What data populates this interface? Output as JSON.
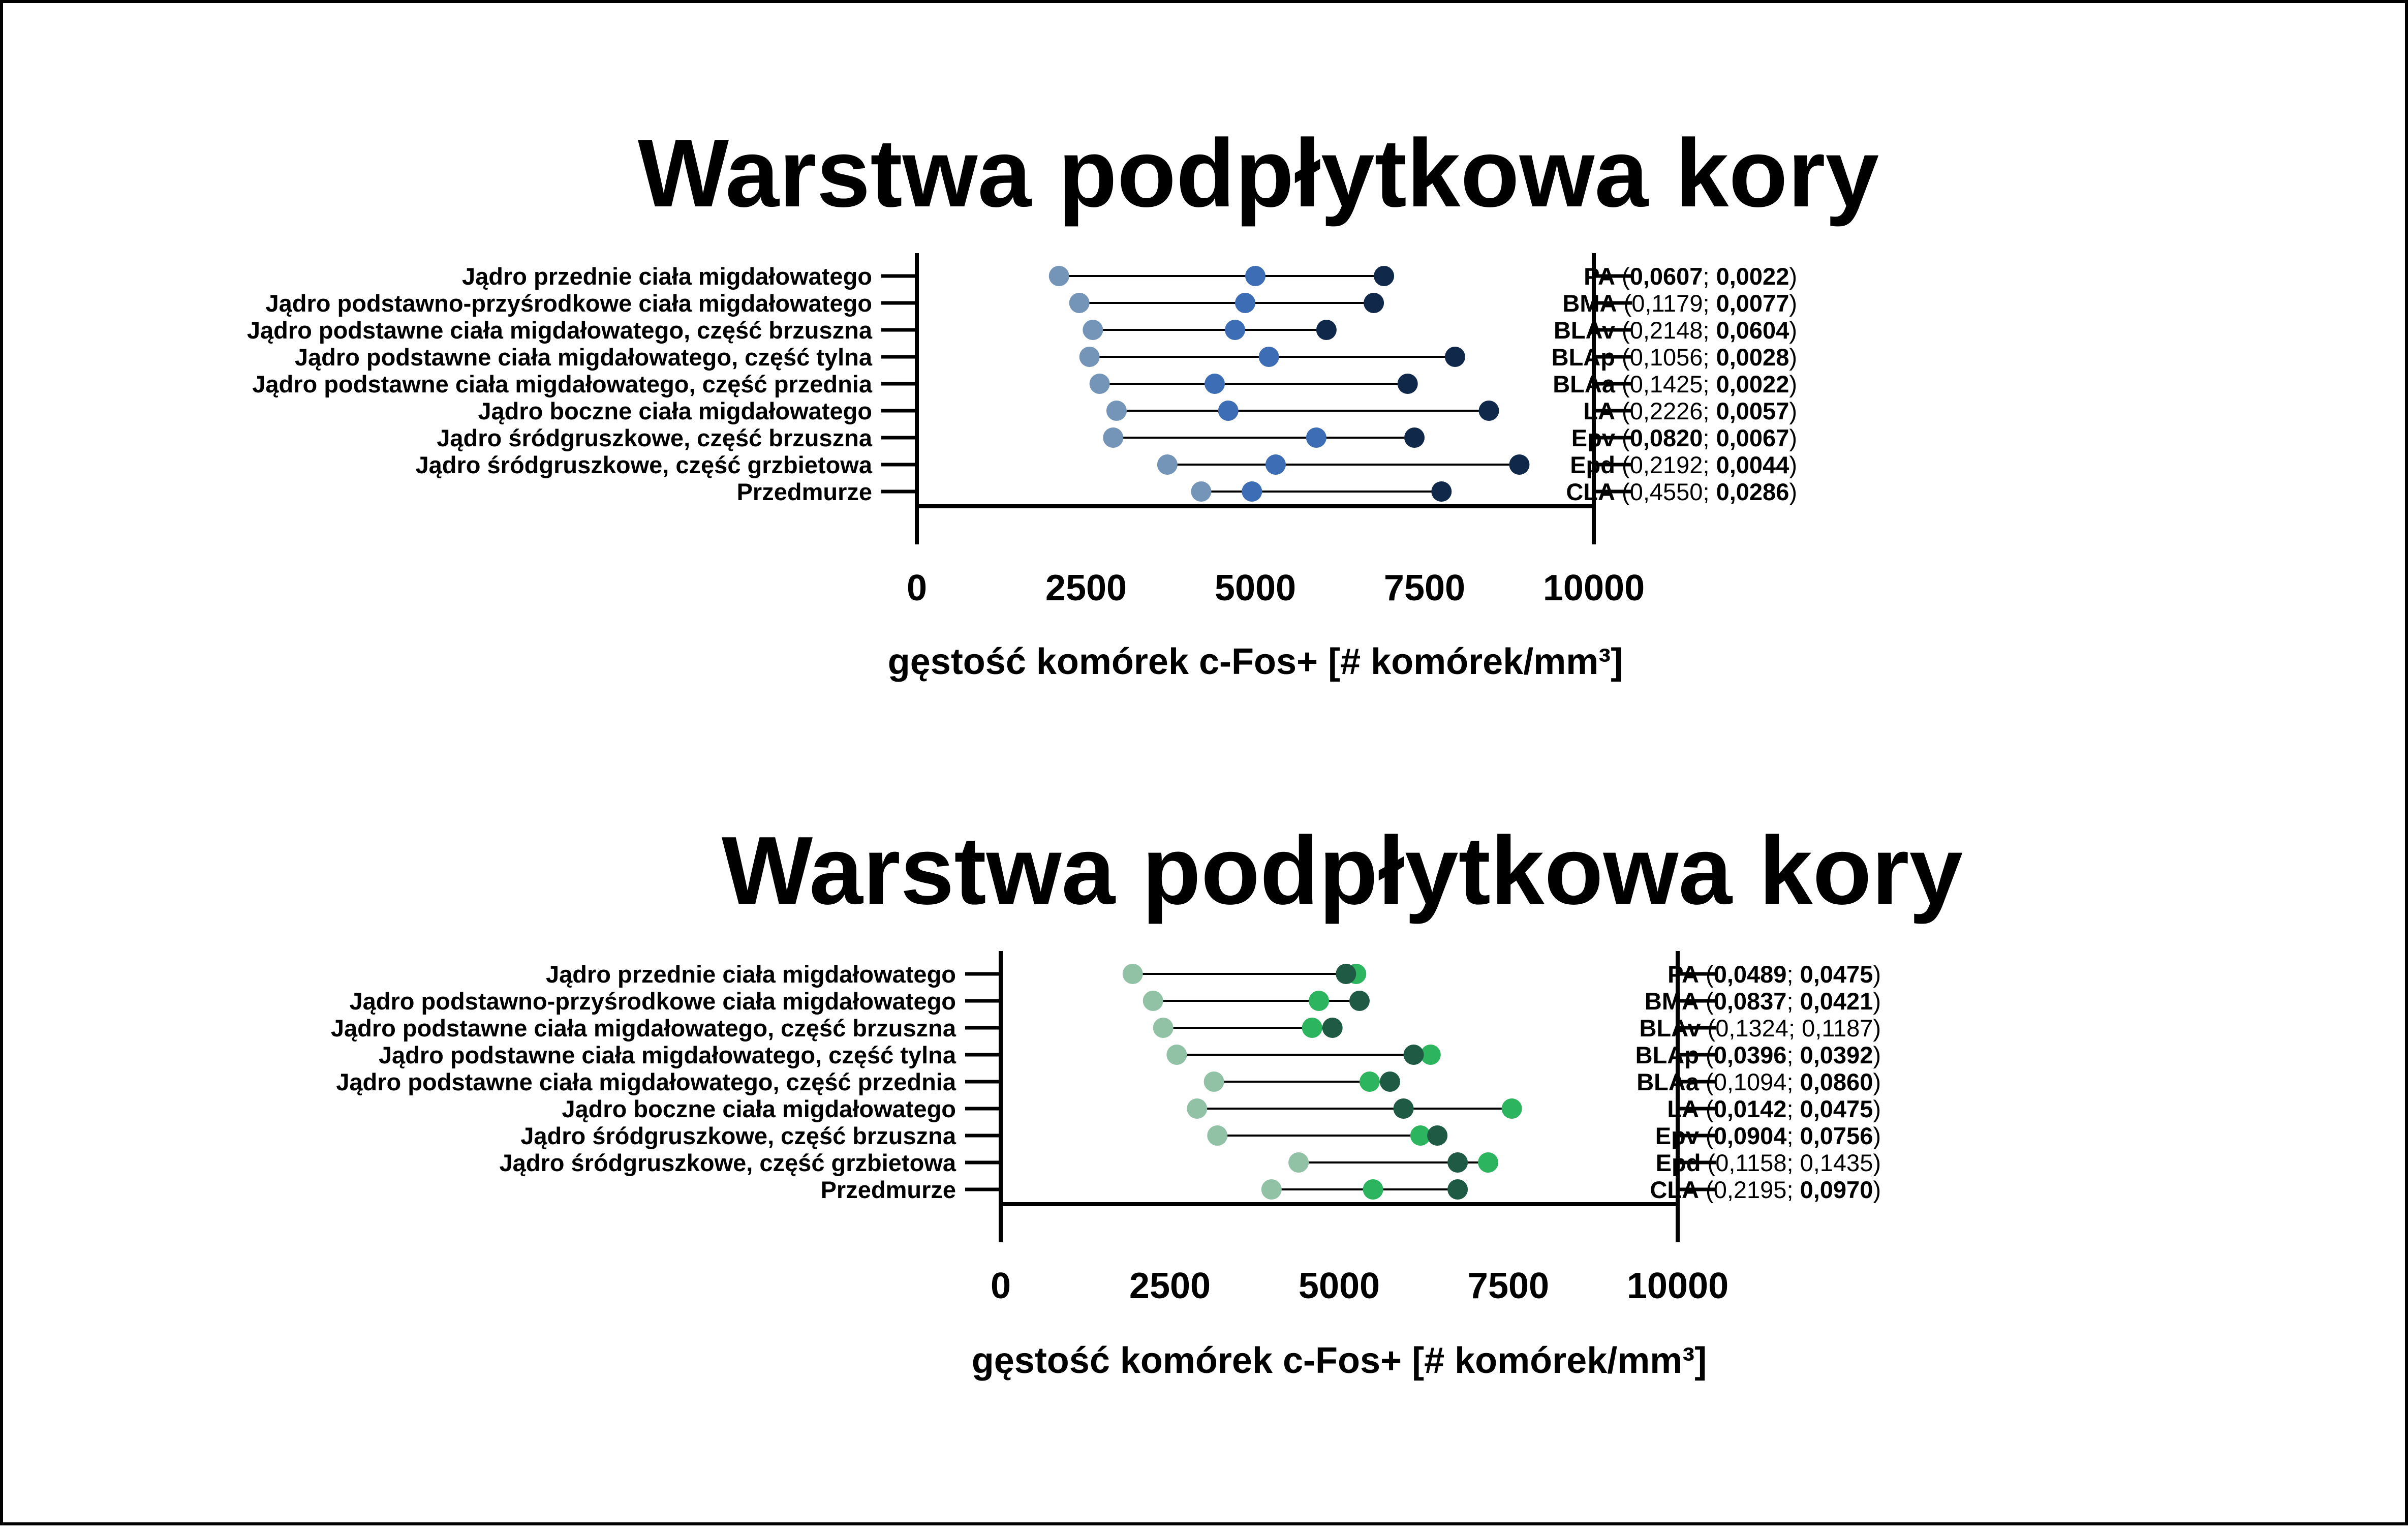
{
  "colors": {
    "blue_light": "#7495b8",
    "blue_mid": "#3d6db5",
    "blue_dark": "#10284a",
    "green_light": "#92c2a6",
    "green_mid": "#2cb45e",
    "green_dark": "#1f5a45",
    "axis": "#000000",
    "connector": "#000000"
  },
  "chart_data": [
    {
      "type": "dumbbell",
      "title": "Warstwa podpłytkowa kory",
      "xlabel": "gęstość  komórek c-Fos+ [# komórek/mm³]",
      "xlim": [
        0,
        10000
      ],
      "xticks": [
        "0",
        "2500",
        "5000",
        "7500",
        "10000"
      ],
      "categories": [
        "Jądro przednie ciała migdałowatego",
        "Jądro podstawno-przyśrodkowe ciała migdałowatego",
        "Jądro podstawne ciała migdałowatego, część brzuszna",
        "Jądro podstawne ciała migdałowatego, część tylna",
        "Jądro podstawne ciała migdałowatego, część przednia",
        "Jądro boczne ciała migdałowatego",
        "Jądro śródgruszkowe, część brzuszna",
        "Jądro śródgruszkowe, część grzbietowa",
        "Przedmurze"
      ],
      "series": [
        {
          "color": "#7495b8",
          "values": [
            2100,
            2400,
            2600,
            2550,
            2700,
            2950,
            2900,
            3700,
            4200
          ]
        },
        {
          "color": "#3d6db5",
          "values": [
            5000,
            4850,
            4700,
            5200,
            4400,
            4600,
            5900,
            5300,
            4950
          ]
        },
        {
          "color": "#10284a",
          "values": [
            6900,
            6750,
            6050,
            7950,
            7250,
            8450,
            7350,
            8900,
            7750
          ]
        }
      ],
      "right_labels": [
        {
          "abbr": "PA",
          "v1": "0,0607",
          "v1_bold": true,
          "v2": "0,0022",
          "v2_bold": true
        },
        {
          "abbr": "BMA",
          "v1": "0,1179",
          "v1_bold": false,
          "v2": "0,0077",
          "v2_bold": true
        },
        {
          "abbr": "BLAv",
          "v1": "0,2148",
          "v1_bold": false,
          "v2": "0,0604",
          "v2_bold": true
        },
        {
          "abbr": "BLAp",
          "v1": "0,1056",
          "v1_bold": false,
          "v2": "0,0028",
          "v2_bold": true
        },
        {
          "abbr": "BLAa",
          "v1": "0,1425",
          "v1_bold": false,
          "v2": "0,0022",
          "v2_bold": true
        },
        {
          "abbr": "LA",
          "v1": "0,2226",
          "v1_bold": false,
          "v2": "0,0057",
          "v2_bold": true
        },
        {
          "abbr": "Epv",
          "v1": "0,0820",
          "v1_bold": true,
          "v2": "0,0067",
          "v2_bold": true
        },
        {
          "abbr": "Epd",
          "v1": "0,2192",
          "v1_bold": false,
          "v2": "0,0044",
          "v2_bold": true
        },
        {
          "abbr": "CLA",
          "v1": "0,4550",
          "v1_bold": false,
          "v2": "0,0286",
          "v2_bold": true
        }
      ]
    },
    {
      "type": "dumbbell",
      "title": "Warstwa podpłytkowa kory",
      "xlabel": "gęstość  komórek c-Fos+ [# komórek/mm³]",
      "xlim": [
        0,
        10000
      ],
      "xticks": [
        "0",
        "2500",
        "5000",
        "7500",
        "10000"
      ],
      "categories": [
        "Jądro przednie ciała migdałowatego",
        "Jądro podstawno-przyśrodkowe ciała migdałowatego",
        "Jądro podstawne ciała migdałowatego, część brzuszna",
        "Jądro podstawne ciała migdałowatego, część tylna",
        "Jądro podstawne ciała migdałowatego, część przednia",
        "Jądro boczne ciała migdałowatego",
        "Jądro śródgruszkowe, część brzuszna",
        "Jądro śródgruszkowe, część grzbietowa",
        "Przedmurze"
      ],
      "series": [
        {
          "color": "#92c2a6",
          "values": [
            1950,
            2250,
            2400,
            2600,
            3150,
            2900,
            3200,
            4400,
            4000
          ]
        },
        {
          "color": "#2cb45e",
          "values": [
            5250,
            4700,
            4600,
            6350,
            5450,
            7550,
            6200,
            7200,
            5500
          ]
        },
        {
          "color": "#1f5a45",
          "values": [
            5100,
            5300,
            4900,
            6100,
            5750,
            5950,
            6450,
            6750,
            6750
          ]
        }
      ],
      "right_labels": [
        {
          "abbr": "PA",
          "v1": "0,0489",
          "v1_bold": true,
          "v2": "0,0475",
          "v2_bold": true
        },
        {
          "abbr": "BMA",
          "v1": "0,0837",
          "v1_bold": true,
          "v2": "0,0421",
          "v2_bold": true
        },
        {
          "abbr": "BLAv",
          "v1": "0,1324",
          "v1_bold": false,
          "v2": "0,1187",
          "v2_bold": false
        },
        {
          "abbr": "BLAp",
          "v1": "0,0396",
          "v1_bold": true,
          "v2": "0,0392",
          "v2_bold": true
        },
        {
          "abbr": "BLAa",
          "v1": "0,1094",
          "v1_bold": false,
          "v2": "0,0860",
          "v2_bold": true
        },
        {
          "abbr": "LA",
          "v1": "0,0142",
          "v1_bold": true,
          "v2": "0,0475",
          "v2_bold": true
        },
        {
          "abbr": "Epv",
          "v1": "0,0904",
          "v1_bold": true,
          "v2": "0,0756",
          "v2_bold": true
        },
        {
          "abbr": "Epd",
          "v1": "0,1158",
          "v1_bold": false,
          "v2": "0,1435",
          "v2_bold": false
        },
        {
          "abbr": "CLA",
          "v1": "0,2195",
          "v1_bold": false,
          "v2": "0,0970",
          "v2_bold": true
        }
      ]
    }
  ]
}
